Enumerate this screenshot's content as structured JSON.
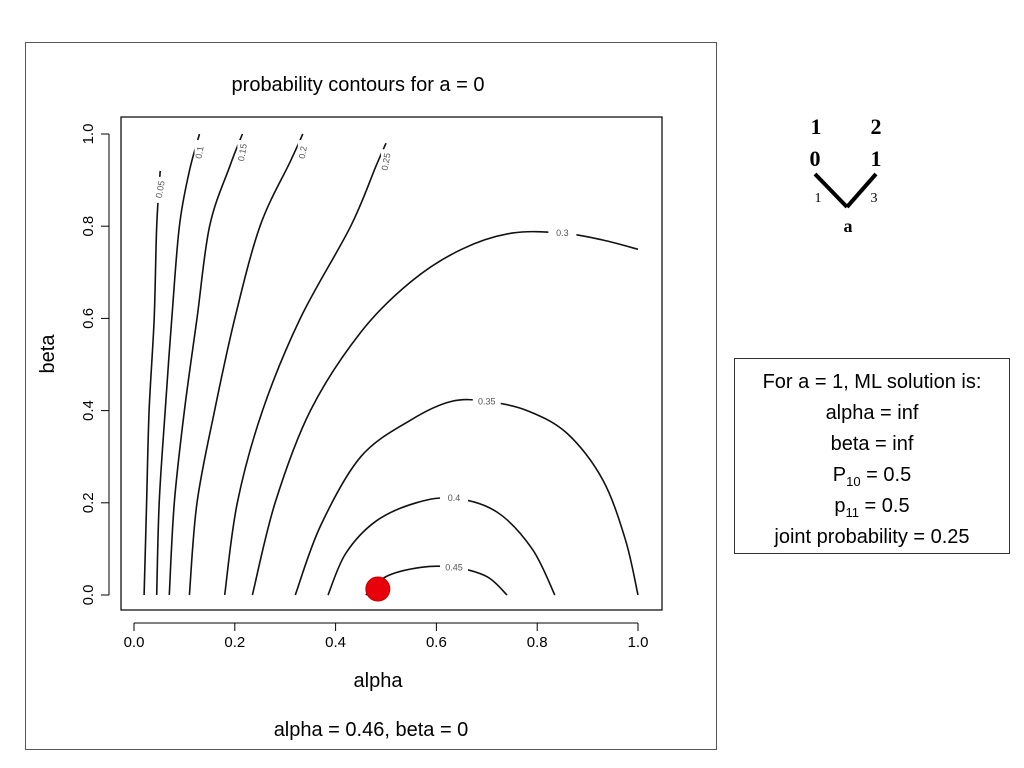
{
  "figure": {
    "caption": "alpha = 0.46, beta = 0"
  },
  "chart_data": {
    "type": "contour",
    "title": "probability contours for a = 0",
    "xlabel": "alpha",
    "ylabel": "beta",
    "xlim": [
      0,
      1
    ],
    "ylim": [
      0,
      1
    ],
    "x_ticks": [
      "0.0",
      "0.2",
      "0.4",
      "0.6",
      "0.8",
      "1.0"
    ],
    "y_ticks": [
      "0.0",
      "0.2",
      "0.4",
      "0.6",
      "0.8",
      "1.0"
    ],
    "grid": false,
    "contours": [
      {
        "level": "0.05",
        "points": [
          [
            0.02,
            0.0
          ],
          [
            0.025,
            0.2
          ],
          [
            0.03,
            0.4
          ],
          [
            0.04,
            0.6
          ],
          [
            0.045,
            0.8
          ],
          [
            0.052,
            0.92
          ]
        ]
      },
      {
        "level": "0.1",
        "points": [
          [
            0.045,
            0.0
          ],
          [
            0.05,
            0.2
          ],
          [
            0.062,
            0.4
          ],
          [
            0.075,
            0.6
          ],
          [
            0.09,
            0.8
          ],
          [
            0.11,
            0.92
          ],
          [
            0.13,
            1.0
          ]
        ]
      },
      {
        "level": "0.15",
        "points": [
          [
            0.07,
            0.0
          ],
          [
            0.08,
            0.2
          ],
          [
            0.1,
            0.4
          ],
          [
            0.125,
            0.6
          ],
          [
            0.15,
            0.8
          ],
          [
            0.19,
            0.93
          ],
          [
            0.215,
            1.0
          ]
        ]
      },
      {
        "level": "0.2",
        "points": [
          [
            0.11,
            0.0
          ],
          [
            0.125,
            0.2
          ],
          [
            0.16,
            0.4
          ],
          [
            0.2,
            0.6
          ],
          [
            0.25,
            0.8
          ],
          [
            0.31,
            0.94
          ],
          [
            0.335,
            1.0
          ]
        ]
      },
      {
        "level": "0.25",
        "points": [
          [
            0.18,
            0.0
          ],
          [
            0.205,
            0.2
          ],
          [
            0.255,
            0.4
          ],
          [
            0.33,
            0.6
          ],
          [
            0.43,
            0.8
          ],
          [
            0.48,
            0.93
          ],
          [
            0.5,
            0.98
          ]
        ]
      },
      {
        "level": "0.3",
        "points": [
          [
            0.235,
            0.0
          ],
          [
            0.28,
            0.2
          ],
          [
            0.35,
            0.4
          ],
          [
            0.45,
            0.57
          ],
          [
            0.55,
            0.68
          ],
          [
            0.65,
            0.75
          ],
          [
            0.75,
            0.785
          ],
          [
            0.85,
            0.785
          ],
          [
            0.93,
            0.77
          ],
          [
            1.0,
            0.75
          ]
        ]
      },
      {
        "level": "0.35",
        "points": [
          [
            0.32,
            0.0
          ],
          [
            0.37,
            0.15
          ],
          [
            0.45,
            0.3
          ],
          [
            0.55,
            0.38
          ],
          [
            0.63,
            0.42
          ],
          [
            0.7,
            0.42
          ],
          [
            0.78,
            0.4
          ],
          [
            0.86,
            0.35
          ],
          [
            0.93,
            0.25
          ],
          [
            0.975,
            0.12
          ],
          [
            1.0,
            0.0
          ]
        ]
      },
      {
        "level": "0.4",
        "points": [
          [
            0.385,
            0.0
          ],
          [
            0.42,
            0.09
          ],
          [
            0.48,
            0.16
          ],
          [
            0.56,
            0.2
          ],
          [
            0.635,
            0.21
          ],
          [
            0.72,
            0.18
          ],
          [
            0.79,
            0.1
          ],
          [
            0.835,
            0.0
          ]
        ]
      },
      {
        "level": "0.45",
        "points": [
          [
            0.46,
            0.0
          ],
          [
            0.5,
            0.04
          ],
          [
            0.57,
            0.06
          ],
          [
            0.635,
            0.06
          ],
          [
            0.7,
            0.04
          ],
          [
            0.74,
            0.0
          ]
        ]
      }
    ],
    "highlight_point": {
      "x": 0.46,
      "y": 0.0,
      "color": "#e8000b"
    }
  },
  "tree": {
    "top_labels": [
      "1",
      "2"
    ],
    "state_labels": [
      "0",
      "1"
    ],
    "branch_lengths": [
      "1",
      "3"
    ],
    "node_label": "a"
  },
  "ml_box": {
    "line1": "For a = 1, ML solution is:",
    "line2": "alpha = inf",
    "line3": "beta = inf",
    "line4_prefix": "P",
    "line4_sub": "10",
    "line4_suffix": " = 0.5",
    "line5_prefix": "p",
    "line5_sub": "11",
    "line5_suffix": " = 0.5",
    "line6": "joint probability = 0.25"
  }
}
